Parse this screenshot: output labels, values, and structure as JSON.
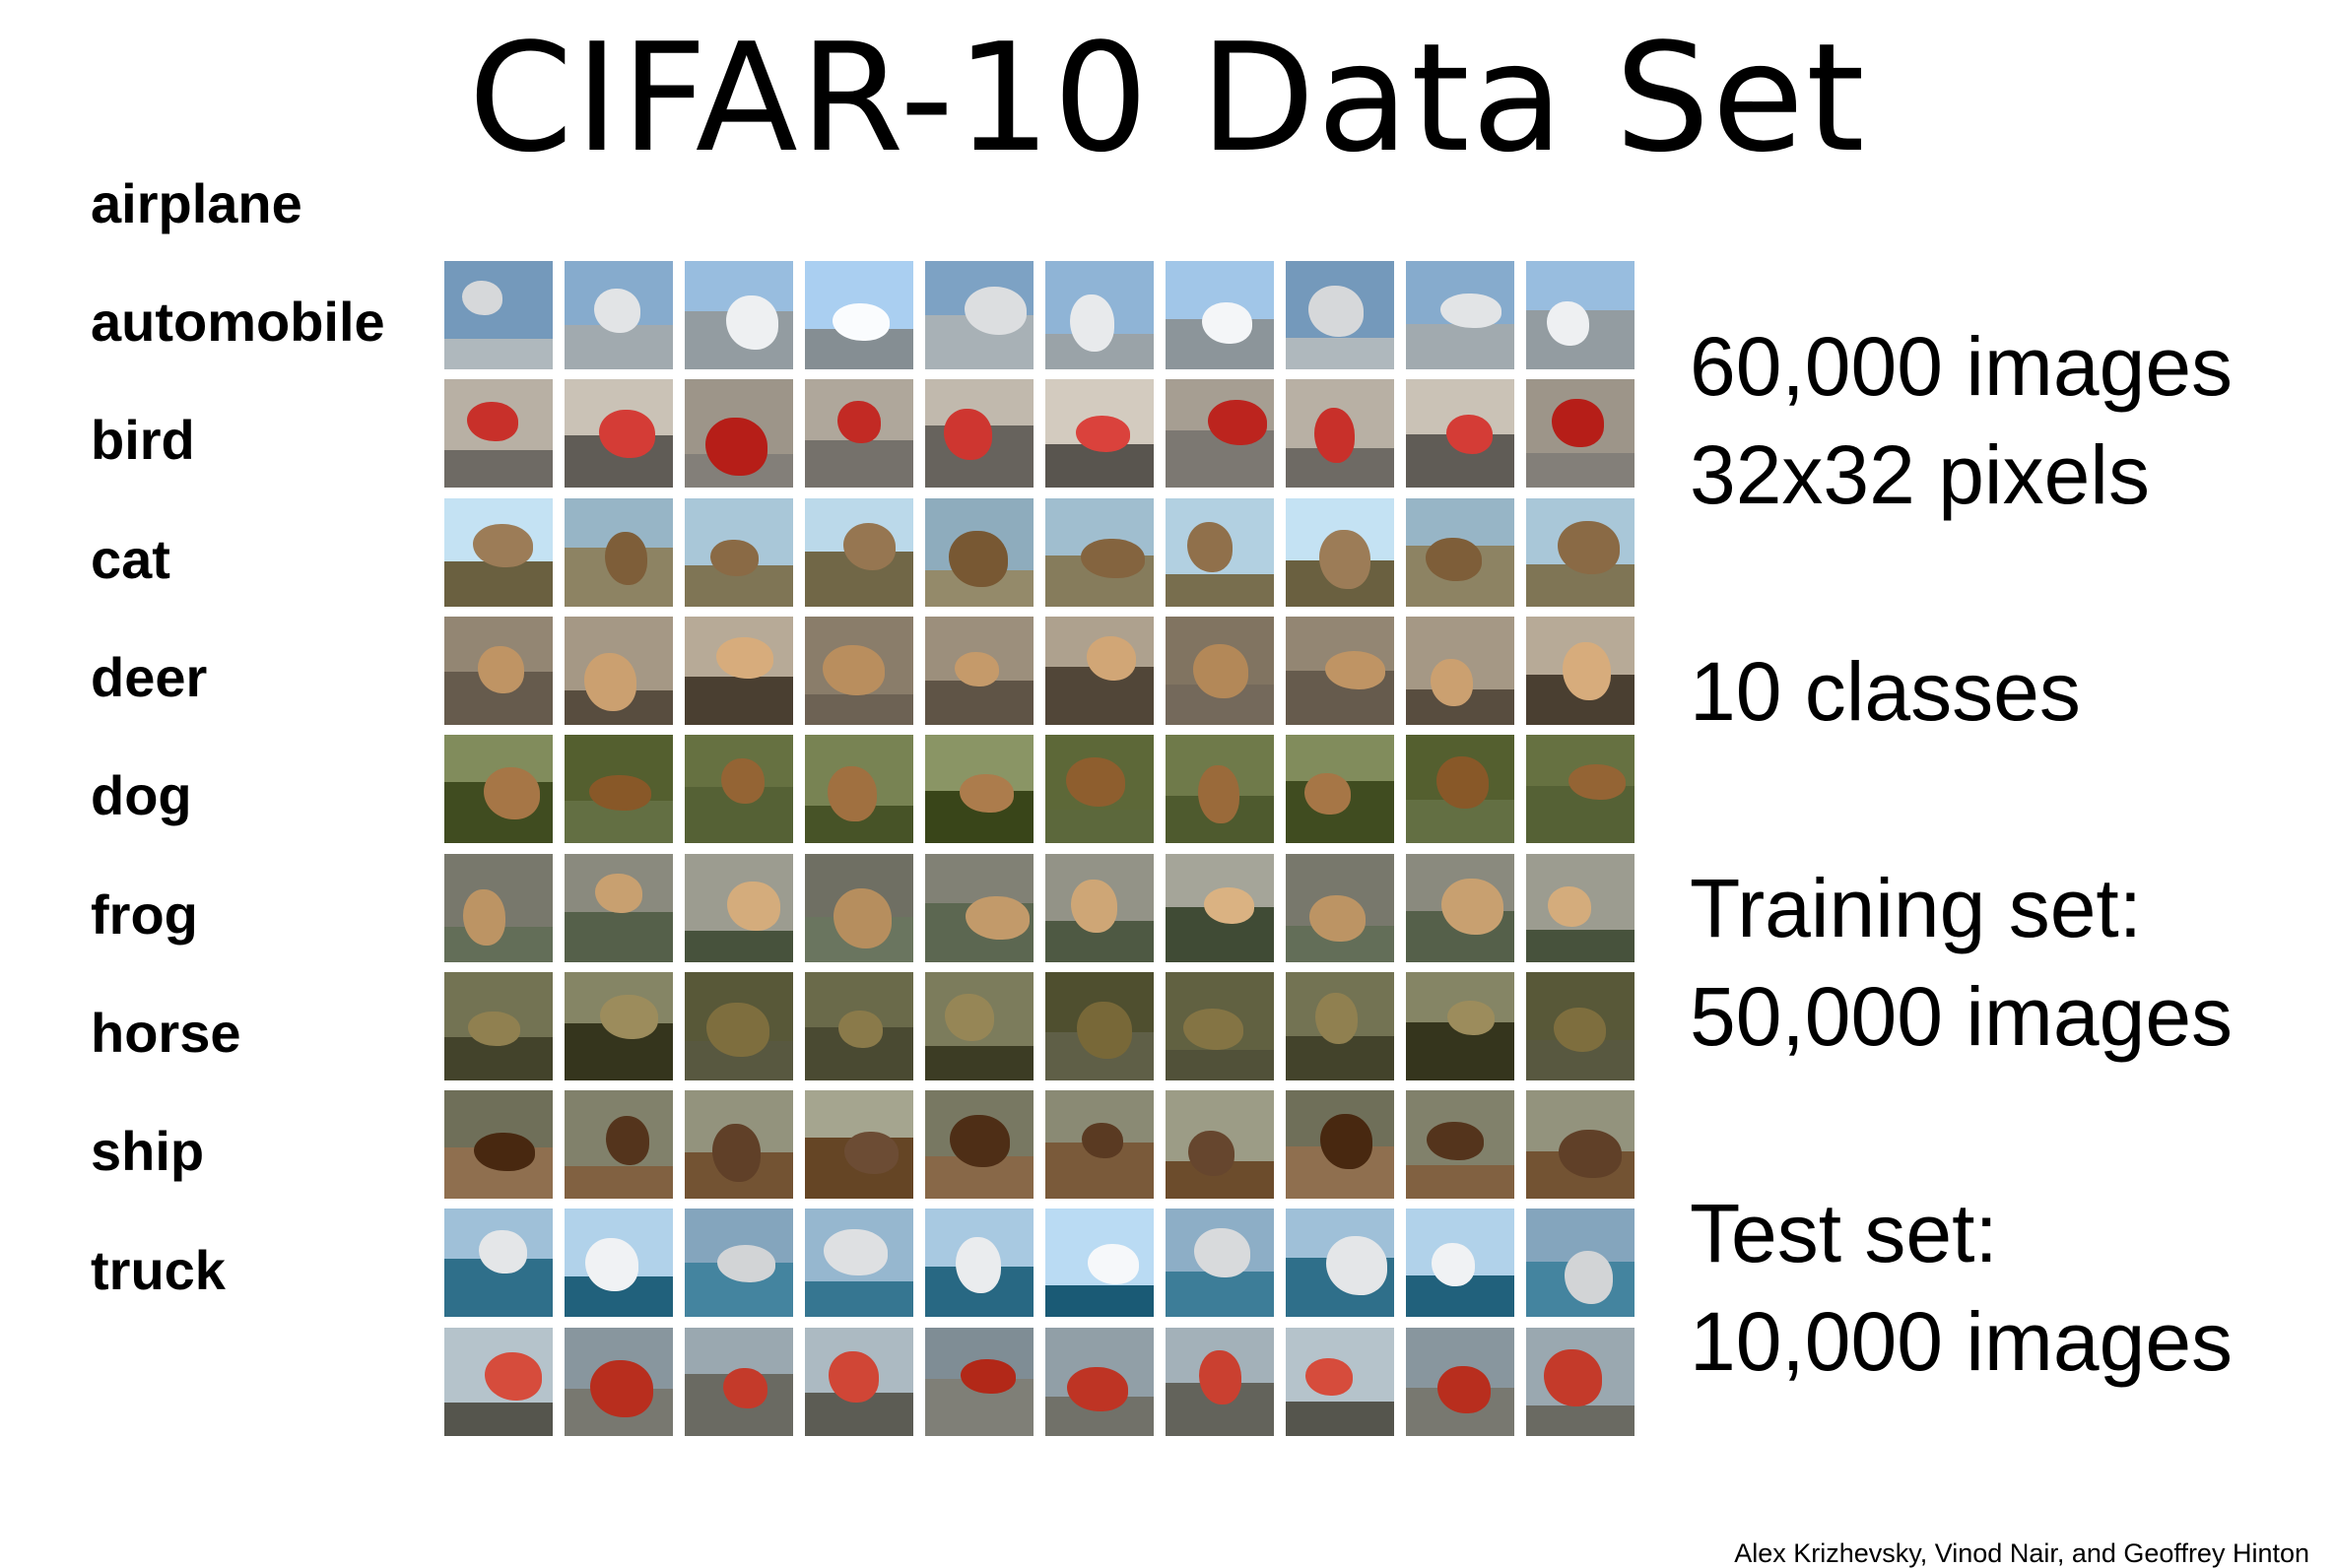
{
  "title": "CIFAR-10 Data Set",
  "classes": [
    "airplane",
    "automobile",
    "bird",
    "cat",
    "deer",
    "dog",
    "frog",
    "horse",
    "ship",
    "truck"
  ],
  "stats": {
    "images_line": "60,000 images",
    "pixels_line": "32x32 pixels",
    "classes_line": "10 classes",
    "training_label": "Training set:",
    "training_value": "50,000 images",
    "test_label": "Test set:",
    "test_value": "10,000 images"
  },
  "credit": "Alex Krizhevsky, Vinod Nair, and Geoffrey Hinton",
  "palette": {
    "airplane": {
      "sky": "#8fb4d6",
      "ground": "#9aa3a8",
      "object": "#e8eaec"
    },
    "automobile": {
      "sky": "#b8b0a4",
      "ground": "#6e6a64",
      "object": "#c8302a"
    },
    "bird": {
      "sky": "#a9c7d8",
      "ground": "#7f7555",
      "object": "#8a6a45"
    },
    "cat": {
      "sky": "#9c8f7c",
      "ground": "#5f5446",
      "object": "#c59a6a"
    },
    "deer": {
      "sky": "#6f7a4a",
      "ground": "#4e5a2e",
      "object": "#9a6a3a"
    },
    "dog": {
      "sky": "#8a8a7e",
      "ground": "#55604a",
      "object": "#c8a070"
    },
    "frog": {
      "sky": "#6a6a4a",
      "ground": "#4a4a32",
      "object": "#8a7a4a"
    },
    "horse": {
      "sky": "#8a8a74",
      "ground": "#7a5a3a",
      "object": "#5a3a22"
    },
    "ship": {
      "sky": "#9fc0d8",
      "ground": "#2f6f8a",
      "object": "#e4e6e8"
    },
    "truck": {
      "sky": "#9aa8b0",
      "ground": "#6a6a62",
      "object": "#c43a2a"
    }
  }
}
